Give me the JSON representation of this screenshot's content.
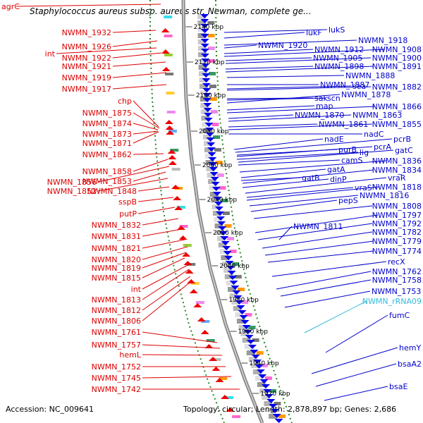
{
  "title": "Staphylococcus aureus subsp. aureus str. Newman, complete ge...",
  "accession": "Accession: NC_009641",
  "topology": "Topology: circular; Length: 2,878,897 bp; Genes: 2,686",
  "colors": {
    "left_labels": "#dd0000",
    "right_labels": "#0000cc",
    "rrna_label": "#33bbdd",
    "forward_arrows": "#ee0000",
    "reverse_arrows": "#0000ee",
    "backbone": "#888888",
    "ruler_dots": "#228822"
  },
  "ruler": {
    "labels": [
      "2140 kbp",
      "2120 kbp",
      "2100 kbp",
      "2080 kbp",
      "2060 kbp",
      "2040 kbp",
      "2020 kbp",
      "2000 kbp",
      "1980 kbp",
      "1960 kbp",
      "1940 kbp",
      "1920 kbp"
    ]
  },
  "left_genes": [
    "agrC",
    "NWMN_1932",
    "NWMN_1926",
    "int",
    "NWMN_1922",
    "NWMN_1921",
    "NWMN_1919",
    "NWMN_1917",
    "chp",
    "NWMN_1875",
    "NWMN_1874",
    "NWMN_1873",
    "NWMN_1871",
    "NWMN_1862",
    "NWMN_1858",
    "NWMN_1856",
    "NWMN_1853",
    "NWMN_1852",
    "NWMN_1848",
    "sspB",
    "putP",
    "NWMN_1832",
    "NWMN_1831",
    "NWMN_1821",
    "NWMN_1820",
    "NWMN_1819",
    "NWMN_1815",
    "int",
    "NWMN_1813",
    "NWMN_1812",
    "NWMN_1806",
    "NWMN_1761",
    "NWMN_1757",
    "hemL",
    "NWMN_1752",
    "NWMN_1745",
    "NWMN_1742"
  ],
  "right_genes": [
    "lukS",
    "lukF",
    "NWMN_1918",
    "NWMN_1920",
    "NWMN_1912",
    "NWMN_1908",
    "NWMN_1905",
    "NWMN_1900",
    "NWMN_1898",
    "NWMN_1891",
    "NWMN_1888",
    "NWMN_1887",
    "sea",
    "NWMN_1882",
    "sak",
    "scn",
    "NWMN_1878",
    "map",
    "NWMN_1866",
    "NWMN_1870",
    "NWMN_1863",
    "NWMN_1861",
    "NWMN_1855",
    "nadC",
    "nadE",
    "pcrB",
    "purB",
    "pcrA",
    "lig",
    "gatC",
    "camS",
    "NWMN_1836",
    "gatB",
    "gatA",
    "NWMN_1834",
    "dinP",
    "vraR",
    "vraS",
    "NWMN_1818",
    "NWMN_1816",
    "pepS",
    "NWMN_1808",
    "NWMN_1811",
    "NWMN_1797",
    "NWMN_1792",
    "NWMN_1782",
    "NWMN_1779",
    "NWMN_1774",
    "recX",
    "NWMN_1762",
    "NWMN_1758",
    "NWMN_1753",
    "NWMN_rRNA09",
    "fumC",
    "hemY",
    "bsaA2",
    "bsaE"
  ]
}
